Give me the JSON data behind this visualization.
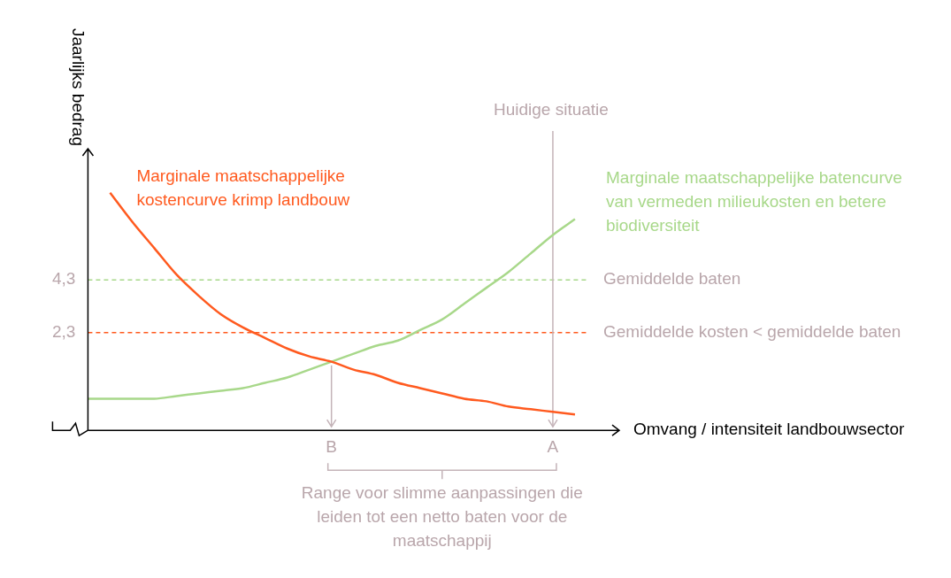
{
  "chart_data": {
    "type": "line",
    "ylabel": "Jaarlijks bedrag",
    "xlabel": "Omvang / intensiteit landbouwsector",
    "categories": [
      null,
      null,
      null,
      null,
      null,
      null,
      null,
      null,
      null,
      null,
      null,
      "B",
      null,
      null,
      null,
      null,
      null,
      null,
      null,
      null,
      null,
      "A",
      null,
      null,
      null
    ],
    "series": [
      {
        "name": "Marginale maatschappelijke kostencurve krimp landbouw",
        "color": "#ff5a1f",
        "values": [
          null,
          7.6,
          6.5,
          5.5,
          4.5,
          3.7,
          3.0,
          2.5,
          2.1,
          1.7,
          1.4,
          1.2,
          0.9,
          0.7,
          0.4,
          0.2,
          0.0,
          -0.2,
          -0.3,
          -0.5,
          -0.6,
          -0.7,
          -0.8,
          null,
          null
        ]
      },
      {
        "name": "Marginale maatschappelijke batencurve van vermeden milieukosten en betere biodiversiteit",
        "color": "#a8d88a",
        "values": [
          -0.2,
          -0.2,
          -0.2,
          -0.2,
          -0.1,
          0.0,
          0.1,
          0.2,
          0.4,
          0.6,
          0.9,
          1.2,
          1.5,
          1.8,
          2.0,
          2.4,
          2.8,
          3.4,
          4.0,
          4.6,
          5.3,
          6.0,
          6.6,
          null,
          null
        ]
      }
    ],
    "ylim": [
      -1.4,
      9.2
    ],
    "yticks": [
      {
        "value": 4.3,
        "label": "4,3"
      },
      {
        "value": 2.3,
        "label": "2,3"
      }
    ],
    "ref_lines": [
      {
        "axis": "y",
        "value": 4.3,
        "label": "Gemiddelde baten",
        "color": "#a8d88a",
        "line_style": "dashed"
      },
      {
        "axis": "y",
        "value": 2.3,
        "label": "Gemiddelde kosten < gemiddelde baten",
        "color": "#ff5a1f",
        "line_style": "dashed"
      },
      {
        "axis": "x",
        "value": "A",
        "label": "Huidige situatie",
        "color": "#c4b3b8",
        "line_style": "solid"
      }
    ],
    "annotations": [
      "Range voor slimme aanpassingen die leiden tot een netto baten voor de maatschappij"
    ],
    "grid": false,
    "legend": false,
    "marker": "none",
    "line_style": "solid"
  }
}
